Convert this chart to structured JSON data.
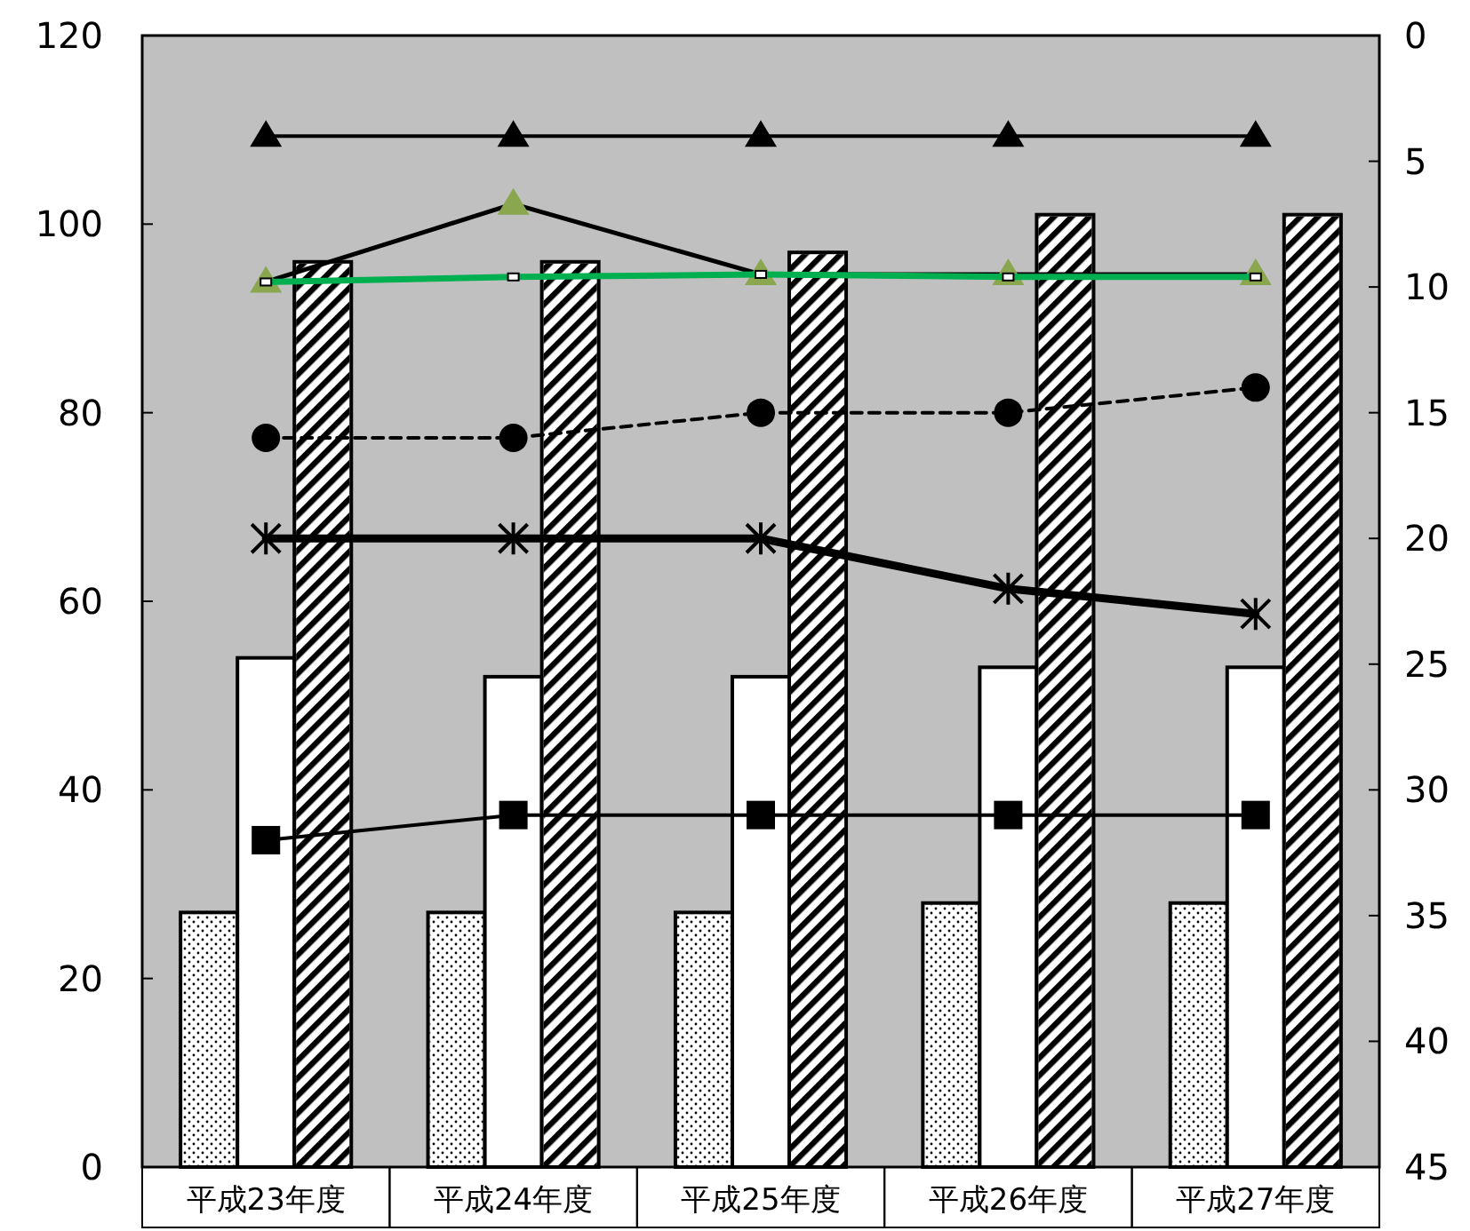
{
  "chart_data": {
    "type": "bar",
    "categories": [
      "平成23年度",
      "平成24年度",
      "平成25年度",
      "平成26年度",
      "平成27年度"
    ],
    "ylim": [
      0,
      120
    ],
    "yticks": [
      0,
      20,
      40,
      60,
      80,
      100,
      120
    ],
    "y2lim": [
      45,
      0
    ],
    "y2ticks": [
      0,
      5,
      10,
      15,
      20,
      25,
      30,
      35,
      40,
      45
    ],
    "grid": false,
    "series": [
      {
        "color": "#ffffff",
        "values": [
          27,
          27,
          27,
          28,
          28
        ]
      },
      {
        "color": "#ffffff",
        "values": [
          54,
          52,
          52,
          53,
          53
        ]
      },
      {
        "color": "#ffffff",
        "values": [
          96,
          96,
          97,
          101,
          101
        ]
      },
      {
        "type": "line",
        "axis": "y2",
        "color": "#000000",
        "marker": "triangle",
        "line_style": "solid",
        "values": [
          4,
          4,
          4,
          4,
          4
        ]
      },
      {
        "type": "line",
        "axis": "y2",
        "color": "#000000",
        "colors": [
          "#8aa64e",
          "#8aa64e",
          "#8aa64e",
          "#8aa64e",
          "#8aa64e"
        ],
        "marker": "triangle",
        "line_style": "solid",
        "values": [
          9.8,
          6.7,
          9.5,
          9.5,
          9.5
        ]
      },
      {
        "type": "line",
        "axis": "y2",
        "color": "#00b050",
        "marker": "square",
        "line_style": "solid",
        "values": [
          9.8,
          9.6,
          9.5,
          9.6,
          9.6
        ]
      },
      {
        "type": "line",
        "axis": "y2",
        "color": "#000000",
        "marker": "circle",
        "line_style": "dashed",
        "values": [
          16,
          16,
          15,
          15,
          14
        ]
      },
      {
        "type": "line",
        "axis": "y2",
        "color": "#000000",
        "marker": "cross",
        "line_style": "solid",
        "values": [
          20,
          20,
          20,
          22,
          23
        ]
      },
      {
        "type": "line",
        "axis": "y2",
        "color": "#000000",
        "marker": "square",
        "line_style": "solid",
        "values": [
          32,
          31,
          31,
          31,
          31
        ]
      }
    ]
  }
}
